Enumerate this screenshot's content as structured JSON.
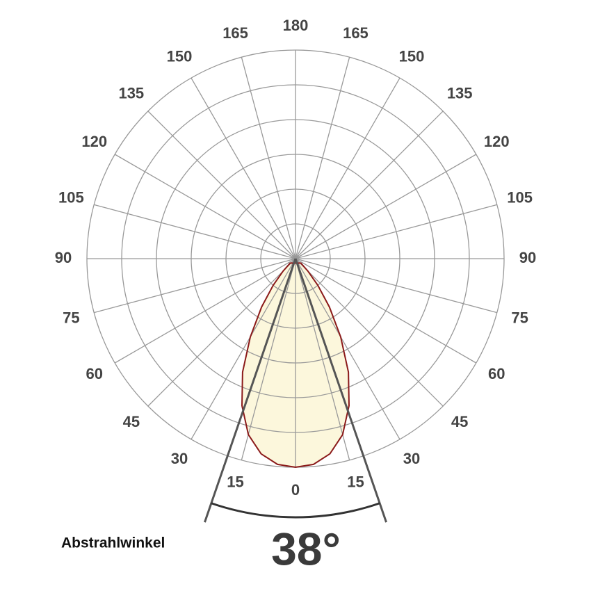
{
  "chart_data": {
    "type": "polar",
    "angle_ticks": [
      0,
      15,
      30,
      45,
      60,
      75,
      90,
      105,
      120,
      135,
      150,
      165,
      180
    ],
    "rlim": [
      0,
      6
    ],
    "rticks": [
      1,
      2,
      3,
      4,
      5,
      6
    ],
    "series": [
      {
        "color": "#8b1a1a",
        "fill": "#fcf7dc",
        "angles": [
          -50,
          -45,
          -40,
          -35,
          -30,
          -25,
          -20,
          -15,
          -10,
          -5,
          0,
          5,
          10,
          15,
          20,
          25,
          30,
          35,
          40,
          45,
          50
        ],
        "values": [
          0.2,
          0.5,
          1.0,
          1.7,
          2.6,
          3.6,
          4.5,
          5.24,
          5.7,
          5.94,
          6,
          5.94,
          5.7,
          5.24,
          4.5,
          3.6,
          2.6,
          1.7,
          1.0,
          0.5,
          0.2
        ]
      }
    ],
    "beam_label": "Abstrahlwinkel",
    "beam_angle": {
      "value": 38,
      "label": "38°"
    }
  }
}
